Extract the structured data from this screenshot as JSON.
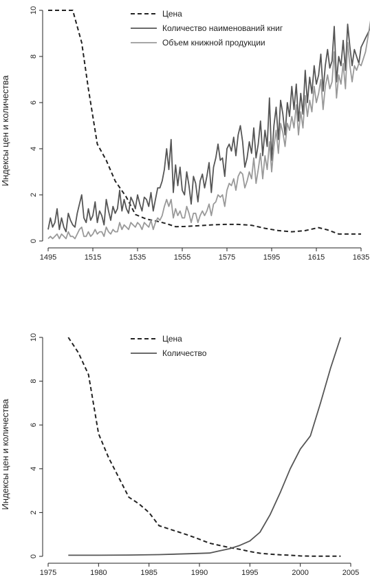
{
  "chart_data": [
    {
      "type": "line",
      "ylabel": "Индексы цен и количества",
      "xlim": [
        1495,
        1635
      ],
      "ylim": [
        0,
        10
      ],
      "x_ticks": [
        1495,
        1515,
        1535,
        1555,
        1575,
        1595,
        1615,
        1635
      ],
      "y_ticks": [
        0,
        2,
        4,
        6,
        8,
        10
      ],
      "legend_position": "top-center",
      "series": [
        {
          "name": "Цена",
          "style": "dashed",
          "color": "#222222",
          "x": [
            1495,
            1498,
            1501,
            1504,
            1506,
            1510,
            1513,
            1517,
            1521,
            1525,
            1530,
            1534,
            1539,
            1544,
            1548,
            1552,
            1556,
            1562,
            1568,
            1574,
            1580,
            1586,
            1592,
            1598,
            1604,
            1610,
            1616,
            1620,
            1625,
            1630,
            1635
          ],
          "y": [
            10,
            10,
            10,
            10,
            10,
            8.6,
            6.6,
            4.2,
            3.5,
            2.6,
            1.9,
            1.15,
            0.95,
            0.85,
            0.75,
            0.62,
            0.63,
            0.66,
            0.7,
            0.72,
            0.72,
            0.68,
            0.55,
            0.45,
            0.4,
            0.45,
            0.58,
            0.48,
            0.3,
            0.3,
            0.3
          ]
        },
        {
          "name": "Количество наименований книг",
          "style": "solid",
          "color": "#555555",
          "x_start": 1495,
          "x_step": 1,
          "y": [
            0.5,
            1.0,
            0.6,
            0.8,
            1.4,
            0.5,
            1.0,
            0.6,
            0.4,
            1.2,
            0.9,
            0.7,
            0.6,
            1.2,
            1.6,
            2.0,
            1.0,
            0.8,
            1.4,
            0.9,
            1.1,
            1.7,
            0.8,
            1.3,
            1.1,
            0.7,
            1.8,
            1.3,
            0.9,
            1.5,
            1.2,
            1.4,
            2.2,
            1.3,
            1.8,
            1.4,
            1.2,
            1.9,
            1.7,
            1.4,
            2.0,
            1.6,
            1.3,
            1.9,
            1.8,
            1.5,
            2.1,
            1.3,
            1.8,
            2.3,
            2.3,
            2.6,
            3.1,
            4.0,
            3.1,
            4.4,
            2.1,
            3.3,
            2.4,
            3.2,
            2.2,
            2.0,
            3.0,
            2.4,
            1.6,
            2.8,
            2.5,
            1.7,
            2.6,
            2.9,
            2.3,
            2.8,
            3.4,
            2.1,
            3.2,
            3.6,
            4.2,
            3.5,
            3.6,
            2.8,
            4.0,
            4.2,
            3.9,
            4.5,
            3.7,
            4.6,
            5.0,
            4.3,
            3.2,
            3.6,
            4.3,
            3.8,
            4.9,
            3.6,
            4.2,
            5.2,
            3.7,
            4.8,
            4.1,
            6.2,
            3.5,
            5.0,
            5.8,
            4.4,
            6.1,
            5.5,
            4.6,
            6.0,
            5.4,
            6.7,
            5.7,
            6.8,
            5.2,
            6.4,
            5.5,
            7.4,
            6.0,
            7.1,
            6.4,
            7.6,
            6.8,
            7.2,
            8.1,
            6.5,
            7.6,
            8.3,
            7.5,
            7.8,
            9.3,
            6.9,
            8.0,
            7.6,
            8.7,
            7.4,
            9.4,
            8.4,
            7.6,
            8.3,
            8.0,
            7.7,
            8.4,
            8.6,
            8.8,
            9.0,
            9.2,
            9.4
          ]
        },
        {
          "name": "Объем книжной продукции",
          "style": "solid",
          "color": "#999999",
          "x_start": 1495,
          "x_step": 1,
          "y": [
            0.1,
            0.2,
            0.1,
            0.2,
            0.3,
            0.1,
            0.3,
            0.2,
            0.1,
            0.4,
            0.2,
            0.2,
            0.1,
            0.3,
            0.5,
            0.6,
            0.2,
            0.2,
            0.4,
            0.2,
            0.3,
            0.5,
            0.3,
            0.4,
            0.4,
            0.2,
            0.6,
            0.4,
            0.3,
            0.5,
            0.4,
            0.4,
            0.8,
            0.5,
            0.7,
            0.6,
            0.5,
            0.8,
            0.7,
            0.6,
            0.8,
            0.7,
            0.5,
            0.8,
            0.7,
            0.6,
            0.9,
            0.5,
            0.8,
            1.0,
            0.9,
            1.1,
            1.5,
            1.8,
            1.5,
            1.8,
            1.0,
            1.4,
            1.1,
            1.3,
            1.0,
            1.0,
            1.5,
            1.2,
            0.8,
            1.2,
            1.2,
            0.8,
            1.1,
            1.3,
            1.1,
            1.3,
            1.6,
            1.1,
            1.6,
            1.7,
            2.0,
            1.9,
            2.0,
            1.5,
            2.2,
            2.5,
            2.4,
            2.7,
            2.2,
            2.8,
            3.0,
            2.9,
            2.3,
            2.6,
            3.0,
            2.7,
            3.6,
            2.5,
            3.1,
            3.8,
            2.7,
            3.7,
            3.1,
            4.3,
            3.0,
            4.1,
            4.8,
            3.8,
            5.1,
            4.7,
            4.1,
            5.1,
            4.8,
            5.4,
            4.9,
            5.9,
            4.6,
            5.6,
            4.9,
            6.3,
            5.4,
            6.1,
            5.6,
            6.7,
            6.0,
            6.4,
            7.0,
            5.7,
            6.7,
            7.2,
            6.6,
            6.9,
            8.2,
            6.2,
            7.2,
            6.8,
            7.7,
            6.6,
            8.6,
            7.6,
            6.9,
            7.6,
            7.4,
            7.7,
            7.6,
            7.9,
            8.2,
            8.8,
            9.4,
            10.0
          ]
        }
      ]
    },
    {
      "type": "line",
      "ylabel": "Индексы цен и количества",
      "xlim": [
        1975,
        2005
      ],
      "ylim": [
        0,
        10
      ],
      "x_ticks": [
        1975,
        1980,
        1985,
        1990,
        1995,
        2000,
        2005
      ],
      "y_ticks": [
        0,
        2,
        4,
        6,
        8,
        10
      ],
      "legend_position": "top-center",
      "series": [
        {
          "name": "Цена",
          "style": "dashed",
          "color": "#222222",
          "x": [
            1977,
            1978,
            1979,
            1980,
            1981,
            1982,
            1983,
            1984,
            1985,
            1986,
            1987,
            1988,
            1989,
            1990,
            1991,
            1992,
            1993,
            1994,
            1995,
            1996,
            1997,
            1998,
            1999,
            2000,
            2001,
            2002,
            2003,
            2004
          ],
          "y": [
            10.0,
            9.3,
            8.3,
            5.6,
            4.5,
            3.6,
            2.7,
            2.4,
            2.0,
            1.4,
            1.25,
            1.1,
            0.95,
            0.78,
            0.6,
            0.5,
            0.4,
            0.32,
            0.22,
            0.14,
            0.1,
            0.07,
            0.05,
            0.02,
            0.01,
            0.01,
            0.01,
            0.01
          ]
        },
        {
          "name": "Количество",
          "style": "solid",
          "color": "#555555",
          "x": [
            1977,
            1980,
            1983,
            1986,
            1989,
            1991,
            1992,
            1993,
            1994,
            1995,
            1996,
            1997,
            1998,
            1999,
            2000,
            2001,
            2002,
            2003,
            2004
          ],
          "y": [
            0.05,
            0.05,
            0.06,
            0.08,
            0.12,
            0.15,
            0.25,
            0.35,
            0.5,
            0.7,
            1.1,
            1.9,
            2.9,
            4.0,
            4.9,
            5.5,
            7.0,
            8.6,
            10.0
          ]
        }
      ]
    }
  ]
}
